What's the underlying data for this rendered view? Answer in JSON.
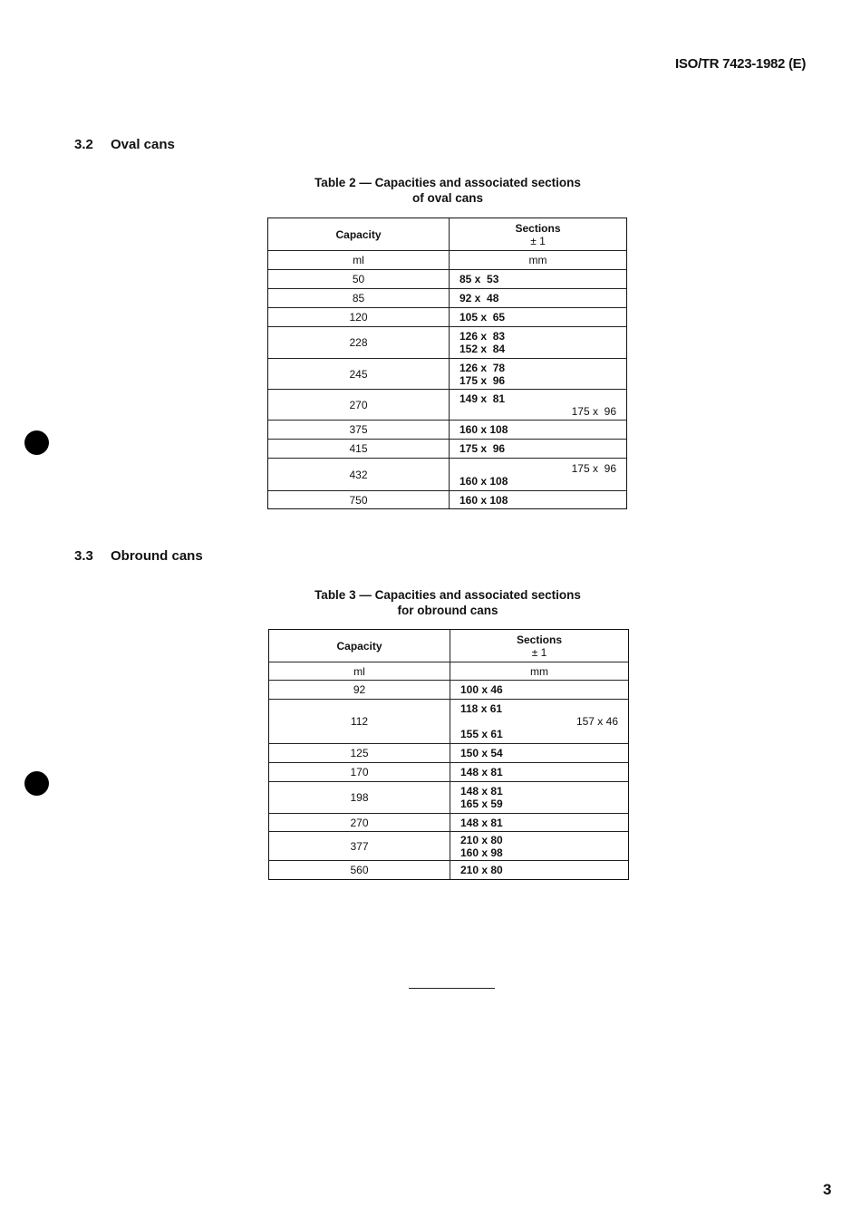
{
  "header": {
    "doc_id": "ISO/TR 7423-1982 (E)"
  },
  "section_oval": {
    "number": "3.2",
    "title": "Oval cans"
  },
  "table2": {
    "caption_line1": "Table 2 — Capacities and associated sections",
    "caption_line2": "of oval cans",
    "col1_header": "Capacity",
    "col2_header": "Sections",
    "col2_tolerance": "± 1",
    "col1_unit": "ml",
    "col2_unit": "mm",
    "rows": [
      {
        "capacity": "50",
        "sections": [
          {
            "text": "85 x  53",
            "align": "left"
          }
        ]
      },
      {
        "capacity": "85",
        "sections": [
          {
            "text": "92 x  48",
            "align": "left"
          }
        ]
      },
      {
        "capacity": "120",
        "sections": [
          {
            "text": "105 x  65",
            "align": "left"
          }
        ]
      },
      {
        "capacity": "228",
        "sections": [
          {
            "text": "126 x  83",
            "align": "left"
          },
          {
            "text": "152 x  84",
            "align": "left"
          }
        ]
      },
      {
        "capacity": "245",
        "sections": [
          {
            "text": "126 x  78",
            "align": "left"
          },
          {
            "text": "175 x  96",
            "align": "left"
          }
        ]
      },
      {
        "capacity": "270",
        "sections": [
          {
            "text": "149 x  81",
            "align": "left"
          },
          {
            "text": "175 x  96",
            "align": "right"
          }
        ]
      },
      {
        "capacity": "375",
        "sections": [
          {
            "text": "160 x 108",
            "align": "left"
          }
        ]
      },
      {
        "capacity": "415",
        "sections": [
          {
            "text": "175 x  96",
            "align": "left"
          }
        ]
      },
      {
        "capacity": "432",
        "sections": [
          {
            "text": "175 x  96",
            "align": "right"
          },
          {
            "text": "160 x 108",
            "align": "left"
          }
        ]
      },
      {
        "capacity": "750",
        "sections": [
          {
            "text": "160 x 108",
            "align": "left"
          }
        ]
      }
    ]
  },
  "section_obround": {
    "number": "3.3",
    "title": "Obround cans"
  },
  "table3": {
    "caption_line1": "Table 3 — Capacities and associated sections",
    "caption_line2": "for obround cans",
    "col1_header": "Capacity",
    "col2_header": "Sections",
    "col2_tolerance": "± 1",
    "col1_unit": "ml",
    "col2_unit": "mm",
    "rows": [
      {
        "capacity": "92",
        "sections": [
          {
            "text": "100 x 46",
            "align": "left"
          }
        ]
      },
      {
        "capacity": "112",
        "sections": [
          {
            "text": "118 x 61",
            "align": "left"
          },
          {
            "text": "157 x 46",
            "align": "right"
          },
          {
            "text": "155 x 61",
            "align": "left"
          }
        ]
      },
      {
        "capacity": "125",
        "sections": [
          {
            "text": "150 x 54",
            "align": "left"
          }
        ]
      },
      {
        "capacity": "170",
        "sections": [
          {
            "text": "148 x 81",
            "align": "left"
          }
        ]
      },
      {
        "capacity": "198",
        "sections": [
          {
            "text": "148 x 81",
            "align": "left"
          },
          {
            "text": "165 x 59",
            "align": "left"
          }
        ]
      },
      {
        "capacity": "270",
        "sections": [
          {
            "text": "148 x 81",
            "align": "left"
          }
        ]
      },
      {
        "capacity": "377",
        "sections": [
          {
            "text": "210 x 80",
            "align": "left"
          },
          {
            "text": "160 x 98",
            "align": "left"
          }
        ]
      },
      {
        "capacity": "560",
        "sections": [
          {
            "text": "210 x 80",
            "align": "left"
          }
        ]
      }
    ]
  },
  "footer": {
    "page_number": "3"
  }
}
